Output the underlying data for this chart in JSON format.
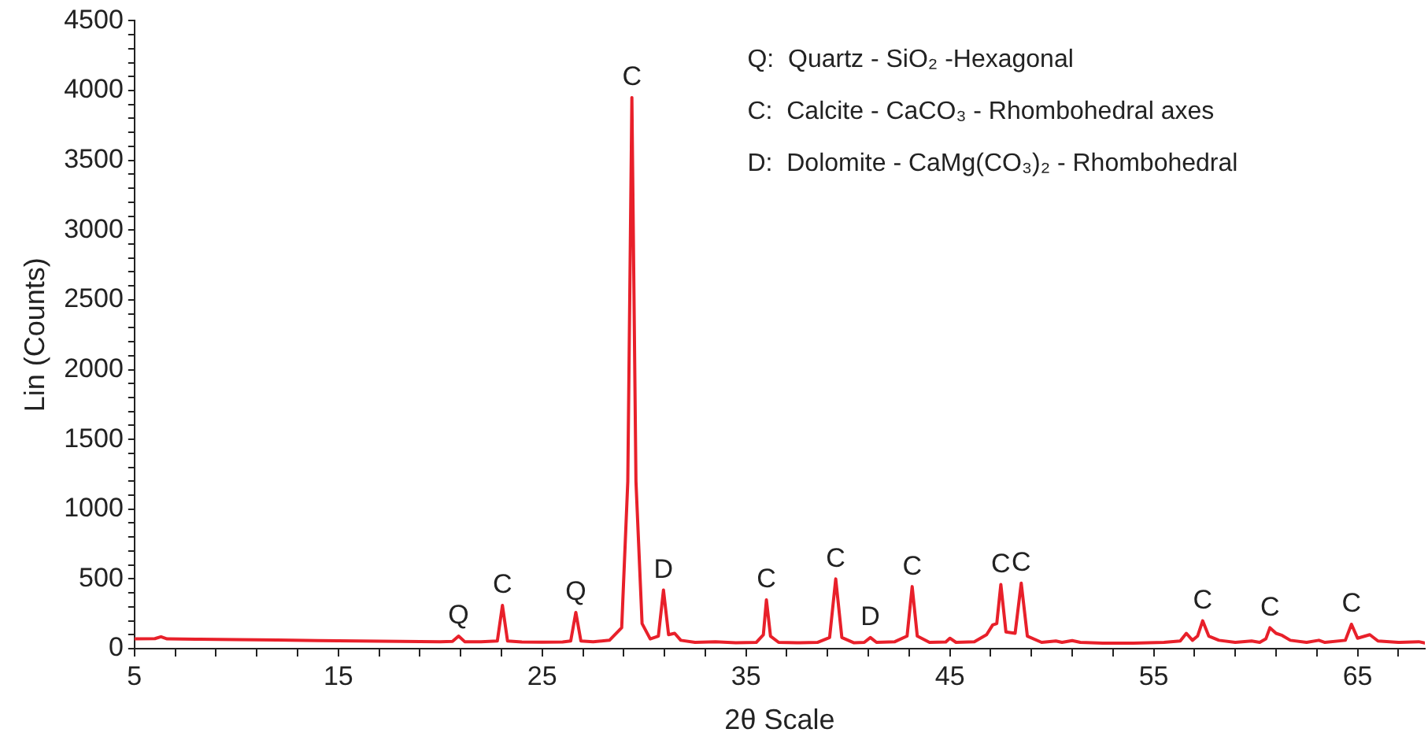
{
  "chart_data": {
    "type": "line",
    "xlabel": "2θ Scale",
    "ylabel": "Lin (Counts)",
    "xlim": [
      5,
      68.3
    ],
    "xticks": [
      5,
      {
        "value": 7,
        "label": null
      },
      {
        "value": 9,
        "label": null
      },
      {
        "value": 11,
        "label": null
      },
      {
        "value": 13,
        "label": null
      },
      15,
      {
        "value": 17,
        "label": null
      },
      {
        "value": 19,
        "label": null
      },
      {
        "value": 21,
        "label": null
      },
      {
        "value": 23,
        "label": null
      },
      25,
      {
        "value": 27,
        "label": null
      },
      {
        "value": 29,
        "label": null
      },
      {
        "value": 31,
        "label": null
      },
      {
        "value": 33,
        "label": null
      },
      35,
      {
        "value": 37,
        "label": null
      },
      {
        "value": 39,
        "label": null
      },
      {
        "value": 41,
        "label": null
      },
      {
        "value": 43,
        "label": null
      },
      45,
      {
        "value": 47,
        "label": null
      },
      {
        "value": 49,
        "label": null
      },
      {
        "value": 51,
        "label": null
      },
      {
        "value": 53,
        "label": null
      },
      55,
      {
        "value": 57,
        "label": null
      },
      {
        "value": 59,
        "label": null
      },
      {
        "value": 61,
        "label": null
      },
      {
        "value": 63,
        "label": null
      },
      65,
      {
        "value": 67,
        "label": null
      }
    ],
    "ylim": [
      0,
      4500
    ],
    "yticks": [
      0,
      {
        "value": 100,
        "label": null
      },
      {
        "value": 200,
        "label": null
      },
      {
        "value": 300,
        "label": null
      },
      {
        "value": 400,
        "label": null
      },
      500,
      {
        "value": 600,
        "label": null
      },
      {
        "value": 700,
        "label": null
      },
      {
        "value": 800,
        "label": null
      },
      {
        "value": 900,
        "label": null
      },
      1000,
      {
        "value": 1100,
        "label": null
      },
      {
        "value": 1200,
        "label": null
      },
      {
        "value": 1300,
        "label": null
      },
      {
        "value": 1400,
        "label": null
      },
      1500,
      {
        "value": 1600,
        "label": null
      },
      {
        "value": 1700,
        "label": null
      },
      {
        "value": 1800,
        "label": null
      },
      {
        "value": 1900,
        "label": null
      },
      2000,
      {
        "value": 2100,
        "label": null
      },
      {
        "value": 2200,
        "label": null
      },
      {
        "value": 2300,
        "label": null
      },
      {
        "value": 2400,
        "label": null
      },
      2500,
      {
        "value": 2600,
        "label": null
      },
      {
        "value": 2700,
        "label": null
      },
      {
        "value": 2800,
        "label": null
      },
      {
        "value": 2900,
        "label": null
      },
      3000,
      {
        "value": 3100,
        "label": null
      },
      {
        "value": 3200,
        "label": null
      },
      {
        "value": 3300,
        "label": null
      },
      {
        "value": 3400,
        "label": null
      },
      3500,
      {
        "value": 3600,
        "label": null
      },
      {
        "value": 3700,
        "label": null
      },
      {
        "value": 3800,
        "label": null
      },
      {
        "value": 3900,
        "label": null
      },
      4000,
      {
        "value": 4100,
        "label": null
      },
      {
        "value": 4200,
        "label": null
      },
      {
        "value": 4300,
        "label": null
      },
      {
        "value": 4400,
        "label": null
      },
      4500
    ],
    "grid": false,
    "legend": false,
    "marker": "none",
    "line_style": "solid",
    "series": [
      {
        "color": "#e8202a",
        "x": [
          5,
          6,
          6.3,
          6.6,
          8,
          10,
          12,
          14,
          16,
          18,
          20,
          20.6,
          20.9,
          21.2,
          22,
          22.8,
          23.05,
          23.3,
          24,
          25,
          26,
          26.4,
          26.65,
          26.9,
          27.5,
          28.3,
          28.9,
          29.2,
          29.4,
          29.6,
          29.9,
          30.3,
          30.7,
          30.95,
          31.2,
          31.5,
          31.8,
          32.5,
          33.5,
          34.5,
          35.5,
          35.85,
          36.0,
          36.2,
          36.6,
          37.5,
          38.5,
          39.1,
          39.4,
          39.7,
          40.3,
          40.8,
          41.1,
          41.4,
          42.3,
          42.9,
          43.15,
          43.4,
          44,
          44.8,
          45.0,
          45.3,
          46.2,
          46.8,
          47.1,
          47.3,
          47.5,
          47.75,
          48.2,
          48.5,
          48.8,
          49.5,
          50.2,
          50.5,
          51,
          51.4,
          52.5,
          54,
          55.5,
          56.3,
          56.6,
          56.9,
          57.15,
          57.4,
          57.7,
          58.2,
          59,
          59.8,
          60.2,
          60.5,
          60.7,
          61,
          61.3,
          61.7,
          62.5,
          63.1,
          63.4,
          64.4,
          64.7,
          65,
          65.6,
          66,
          67,
          68,
          68.3
        ],
        "values": [
          70,
          72,
          85,
          70,
          68,
          65,
          62,
          58,
          55,
          52,
          50,
          52,
          90,
          50,
          50,
          55,
          310,
          55,
          48,
          47,
          48,
          55,
          260,
          55,
          50,
          60,
          150,
          1200,
          3950,
          1200,
          180,
          70,
          90,
          420,
          100,
          110,
          60,
          45,
          50,
          42,
          45,
          100,
          350,
          90,
          45,
          42,
          45,
          80,
          500,
          80,
          42,
          45,
          80,
          45,
          50,
          90,
          445,
          90,
          45,
          48,
          75,
          45,
          50,
          100,
          170,
          180,
          460,
          120,
          110,
          470,
          90,
          45,
          55,
          45,
          58,
          45,
          40,
          40,
          45,
          55,
          110,
          60,
          90,
          200,
          90,
          60,
          45,
          55,
          45,
          70,
          150,
          110,
          95,
          60,
          45,
          60,
          45,
          60,
          175,
          75,
          100,
          55,
          45,
          50,
          40
        ]
      }
    ],
    "annotations": [
      "Q:  Quartz - SiO₂ -Hexagonal",
      "C:  Calcite - CaCO₃ - Rhombohedral axes",
      "D:  Dolomite - CaMg(CO₃)₂ - Rhombohedral",
      {
        "text": "Q",
        "x": 20.9,
        "y": 90
      },
      {
        "text": "C",
        "x": 23.05,
        "y": 310
      },
      {
        "text": "Q",
        "x": 26.65,
        "y": 260
      },
      {
        "text": "C",
        "x": 29.4,
        "y": 3950
      },
      {
        "text": "D",
        "x": 30.95,
        "y": 420
      },
      {
        "text": "C",
        "x": 36.0,
        "y": 350
      },
      {
        "text": "C",
        "x": 39.4,
        "y": 500
      },
      {
        "text": "D",
        "x": 41.1,
        "y": 80
      },
      {
        "text": "C",
        "x": 43.15,
        "y": 445
      },
      {
        "text": "C",
        "x": 47.5,
        "y": 460
      },
      {
        "text": "C",
        "x": 48.5,
        "y": 470
      },
      {
        "text": "C",
        "x": 57.4,
        "y": 200
      },
      {
        "text": "C",
        "x": 60.7,
        "y": 150
      },
      {
        "text": "C",
        "x": 64.7,
        "y": 175
      }
    ]
  }
}
